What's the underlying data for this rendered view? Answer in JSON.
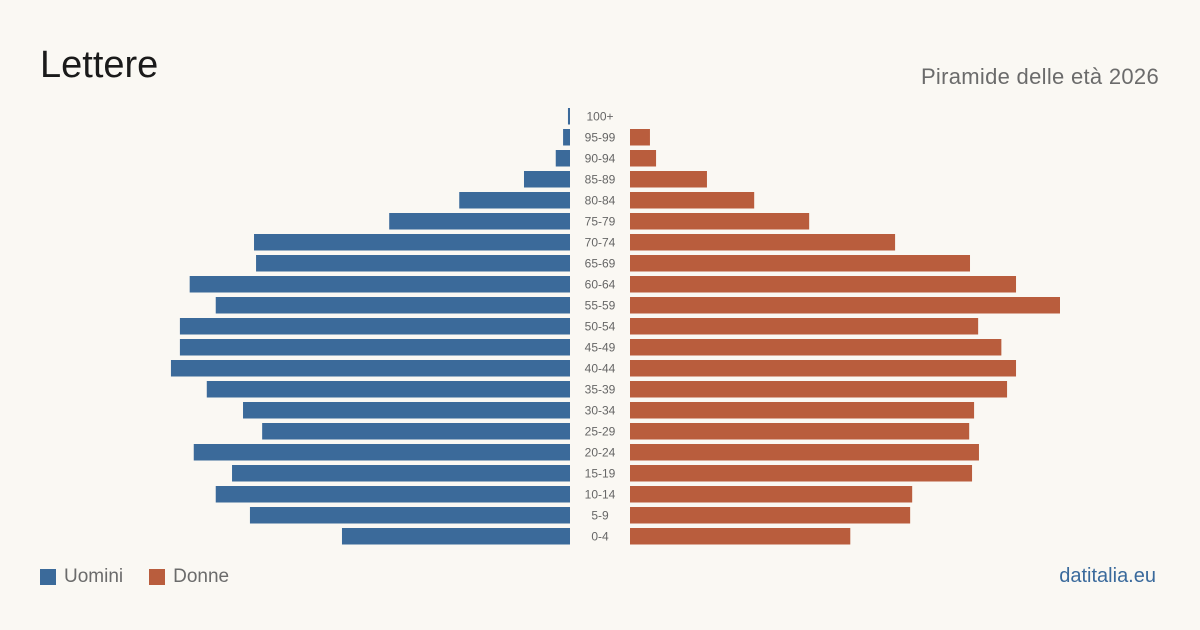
{
  "header": {
    "title": "Lettere",
    "subtitle": "Piramide delle età 2026"
  },
  "legend": {
    "men_label": "Uomini",
    "women_label": "Donne"
  },
  "footer": {
    "source": "datitalia.eu"
  },
  "colors": {
    "men": "#3b6a9a",
    "women": "#b95d3d",
    "age_label": "#666666"
  },
  "chart_data": {
    "type": "bar",
    "orientation": "horizontal-pyramid",
    "categories": [
      "100+",
      "95-99",
      "90-94",
      "85-89",
      "80-84",
      "75-79",
      "70-74",
      "65-69",
      "60-64",
      "55-59",
      "50-54",
      "45-49",
      "40-44",
      "35-39",
      "30-34",
      "25-29",
      "20-24",
      "15-19",
      "10-14",
      "5-9",
      "0-4"
    ],
    "series": [
      {
        "name": "Uomini",
        "values": [
          0.5,
          1.7,
          3.5,
          11.3,
          27.2,
          44.4,
          77.6,
          77.1,
          93.4,
          87.0,
          95.8,
          95.8,
          98.0,
          89.2,
          80.3,
          75.6,
          92.4,
          83.0,
          87.0,
          78.6,
          56.0
        ]
      },
      {
        "name": "Donne",
        "values": [
          0,
          4.9,
          6.4,
          18.9,
          30.5,
          44.0,
          65.1,
          83.5,
          94.8,
          105.6,
          85.5,
          91.2,
          94.8,
          92.6,
          84.5,
          83.3,
          85.7,
          84.0,
          69.3,
          68.8,
          54.1
        ]
      }
    ],
    "xlabel": "",
    "ylabel": "",
    "grid": false,
    "legend_position": "bottom-left"
  }
}
